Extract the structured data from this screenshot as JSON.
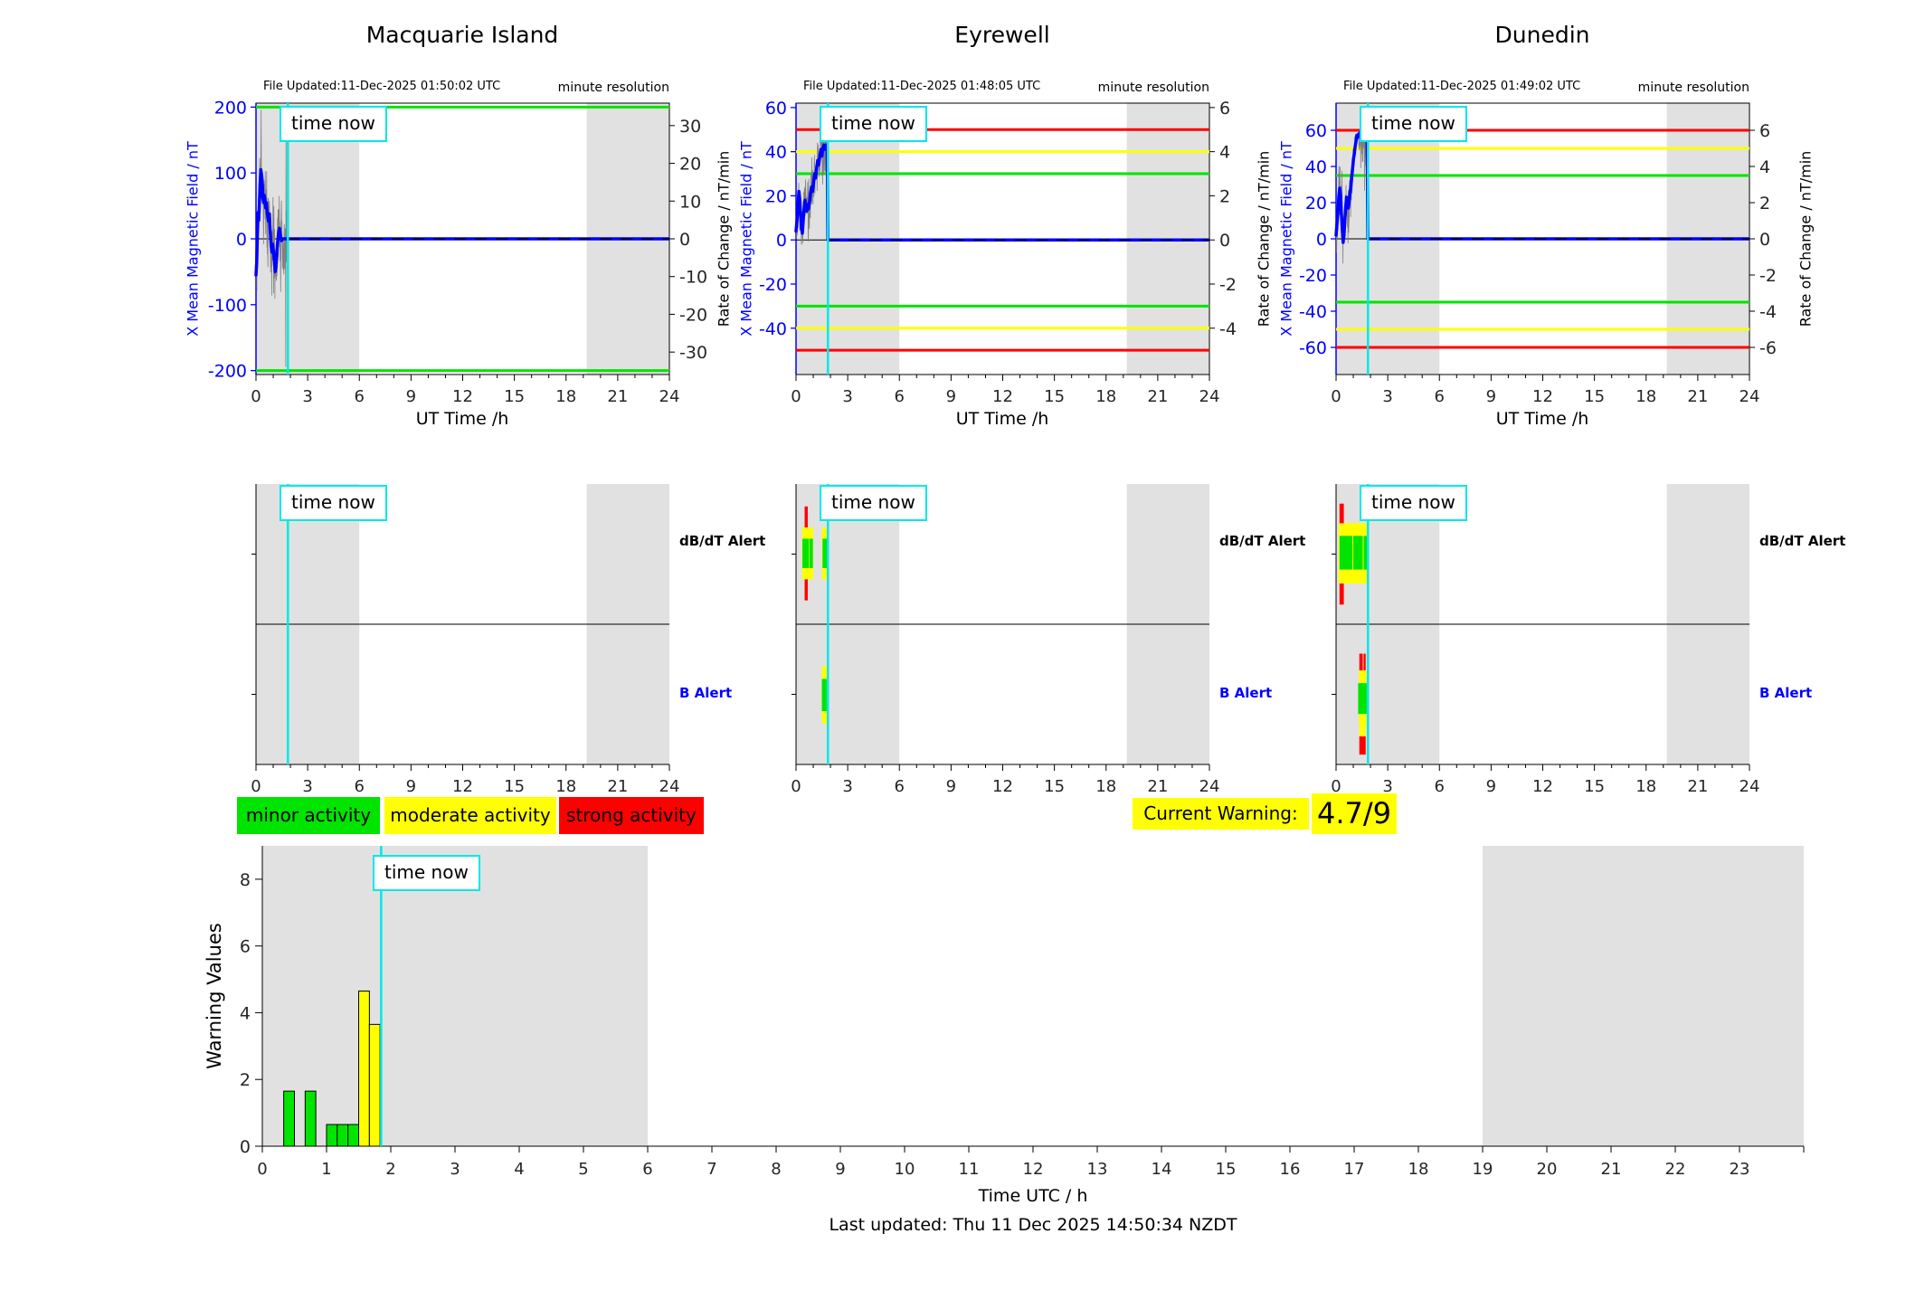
{
  "shared": {
    "time_now": "time now",
    "resolution": "minute resolution",
    "ut_xlabel": "UT Time /h",
    "ylabel_left": "X Mean Magnetic Field / nT",
    "ylabel_right": "Rate of Change / nT/min",
    "dbdt_label": "dB/dT Alert",
    "b_label": "B Alert"
  },
  "legend": {
    "minor": "minor activity",
    "moderate": "moderate activity",
    "strong": "strong activity"
  },
  "warning": {
    "label": "Current Warning:",
    "value": "4.7/9"
  },
  "footer": {
    "xlabel": "Time UTC / h",
    "last_updated": "Last updated: Thu 11 Dec 2025 14:50:34 NZDT",
    "ylabel": "Warning Values"
  },
  "colors": {
    "green": "#00e400",
    "yellow": "#ffff00",
    "red": "#ff0000",
    "blue": "#0000ff",
    "cyan": "#00e8e8",
    "night": "#e1e1e1",
    "noise": "#808080",
    "axis": "#262626",
    "black": "#000000"
  },
  "chart_data": [
    {
      "type": "line",
      "station": "Macquarie Island",
      "file_updated": "File Updated:11-Dec-2025 01:50:02 UTC",
      "xlabel": "UT Time /h",
      "xlim": [
        0,
        24
      ],
      "xticks": [
        0,
        3,
        6,
        9,
        12,
        15,
        18,
        21,
        24
      ],
      "ylim_left": [
        -206,
        206
      ],
      "yticks_left": [
        200,
        100,
        0,
        -100,
        -200
      ],
      "yticks_right": [
        30,
        20,
        10,
        0,
        -10,
        -20,
        -30
      ],
      "right_axis_scale": 5.73,
      "thresholds": [
        {
          "y": 200,
          "c": "green"
        },
        {
          "y": -200,
          "c": "green"
        }
      ],
      "night_shading": [
        [
          0,
          6
        ],
        [
          19.2,
          24
        ]
      ],
      "time_now_h": 1.85,
      "forecast_value": 0,
      "observed": [
        [
          0,
          -55
        ],
        [
          0.04,
          -35
        ],
        [
          0.08,
          5
        ],
        [
          0.12,
          40
        ],
        [
          0.16,
          28
        ],
        [
          0.2,
          55
        ],
        [
          0.24,
          85
        ],
        [
          0.28,
          105
        ],
        [
          0.32,
          98
        ],
        [
          0.36,
          88
        ],
        [
          0.4,
          62
        ],
        [
          0.44,
          55
        ],
        [
          0.48,
          66
        ],
        [
          0.52,
          60
        ],
        [
          0.56,
          47
        ],
        [
          0.6,
          55
        ],
        [
          0.64,
          42
        ],
        [
          0.68,
          34
        ],
        [
          0.72,
          27
        ],
        [
          0.76,
          38
        ],
        [
          0.8,
          24
        ],
        [
          0.84,
          5
        ],
        [
          0.88,
          -12
        ],
        [
          0.92,
          -20
        ],
        [
          0.96,
          -8
        ],
        [
          1.0,
          -16
        ],
        [
          1.04,
          -26
        ],
        [
          1.08,
          -40
        ],
        [
          1.12,
          -50
        ],
        [
          1.16,
          -42
        ],
        [
          1.2,
          -28
        ],
        [
          1.24,
          -10
        ],
        [
          1.28,
          2
        ],
        [
          1.32,
          12
        ],
        [
          1.36,
          16
        ],
        [
          1.4,
          8
        ],
        [
          1.44,
          2
        ],
        [
          1.48,
          -3
        ],
        [
          1.55,
          0
        ],
        [
          1.85,
          0
        ]
      ],
      "noise": {
        "amp": 90,
        "clip": [
          -196,
          196
        ],
        "seed": 11
      }
    },
    {
      "type": "line",
      "station": "Eyrewell",
      "file_updated": "File Updated:11-Dec-2025 01:48:05 UTC",
      "xlabel": "UT Time /h",
      "xlim": [
        0,
        24
      ],
      "xticks": [
        0,
        3,
        6,
        9,
        12,
        15,
        18,
        21,
        24
      ],
      "ylim_left": [
        -61,
        62
      ],
      "yticks_left": [
        60,
        40,
        20,
        0,
        -20,
        -40
      ],
      "yticks_right": [
        6,
        4,
        2,
        0,
        -2,
        -4
      ],
      "right_axis_scale": 10,
      "thresholds": [
        {
          "y": 50,
          "c": "red"
        },
        {
          "y": 40,
          "c": "yellow"
        },
        {
          "y": 30,
          "c": "green"
        },
        {
          "y": -30,
          "c": "green"
        },
        {
          "y": -40,
          "c": "yellow"
        },
        {
          "y": -50,
          "c": "red"
        }
      ],
      "night_shading": [
        [
          0,
          6
        ],
        [
          19.2,
          24
        ]
      ],
      "time_now_h": 1.85,
      "forecast_value": 0,
      "observed": [
        [
          0,
          4
        ],
        [
          0.07,
          10
        ],
        [
          0.12,
          17
        ],
        [
          0.17,
          22
        ],
        [
          0.22,
          18
        ],
        [
          0.27,
          11
        ],
        [
          0.32,
          5
        ],
        [
          0.37,
          3
        ],
        [
          0.42,
          9
        ],
        [
          0.47,
          14
        ],
        [
          0.52,
          18
        ],
        [
          0.57,
          16
        ],
        [
          0.62,
          13
        ],
        [
          0.67,
          16
        ],
        [
          0.72,
          14
        ],
        [
          0.78,
          17
        ],
        [
          0.84,
          21
        ],
        [
          0.9,
          24
        ],
        [
          0.96,
          22
        ],
        [
          1.02,
          26
        ],
        [
          1.08,
          30
        ],
        [
          1.14,
          28
        ],
        [
          1.2,
          33
        ],
        [
          1.26,
          36
        ],
        [
          1.32,
          34
        ],
        [
          1.38,
          38
        ],
        [
          1.44,
          41
        ],
        [
          1.5,
          38
        ],
        [
          1.56,
          42
        ],
        [
          1.62,
          43
        ],
        [
          1.68,
          41
        ],
        [
          1.74,
          43
        ],
        [
          1.8,
          42
        ],
        [
          1.83,
          30
        ],
        [
          1.85,
          0
        ]
      ],
      "noise": {
        "amp": 18,
        "clip": [
          -53,
          56
        ],
        "seed": 22
      }
    },
    {
      "type": "line",
      "station": "Dunedin",
      "file_updated": "File Updated:11-Dec-2025 01:49:02 UTC",
      "xlabel": "UT Time /h",
      "xlim": [
        0,
        24
      ],
      "xticks": [
        0,
        3,
        6,
        9,
        12,
        15,
        18,
        21,
        24
      ],
      "ylim_left": [
        -75,
        75
      ],
      "yticks_left": [
        60,
        40,
        20,
        0,
        -20,
        -40,
        -60
      ],
      "yticks_right": [
        6,
        4,
        2,
        0,
        -2,
        -4,
        -6
      ],
      "right_axis_scale": 10,
      "thresholds": [
        {
          "y": 60,
          "c": "red"
        },
        {
          "y": 50,
          "c": "yellow"
        },
        {
          "y": 35,
          "c": "green"
        },
        {
          "y": -35,
          "c": "green"
        },
        {
          "y": -50,
          "c": "yellow"
        },
        {
          "y": -60,
          "c": "red"
        }
      ],
      "night_shading": [
        [
          0,
          6
        ],
        [
          19.2,
          24
        ]
      ],
      "time_now_h": 1.85,
      "forecast_value": 0,
      "observed": [
        [
          0,
          2
        ],
        [
          0.06,
          9
        ],
        [
          0.11,
          15
        ],
        [
          0.16,
          23
        ],
        [
          0.21,
          28
        ],
        [
          0.26,
          24
        ],
        [
          0.31,
          14
        ],
        [
          0.36,
          5
        ],
        [
          0.41,
          -2
        ],
        [
          0.46,
          2
        ],
        [
          0.51,
          10
        ],
        [
          0.56,
          18
        ],
        [
          0.61,
          23
        ],
        [
          0.66,
          20
        ],
        [
          0.71,
          17
        ],
        [
          0.76,
          21
        ],
        [
          0.81,
          25
        ],
        [
          0.86,
          29
        ],
        [
          0.91,
          34
        ],
        [
          0.96,
          39
        ],
        [
          1.01,
          44
        ],
        [
          1.06,
          47
        ],
        [
          1.11,
          51
        ],
        [
          1.16,
          54
        ],
        [
          1.21,
          57
        ],
        [
          1.26,
          56
        ],
        [
          1.31,
          58
        ],
        [
          1.36,
          57
        ],
        [
          1.41,
          59
        ],
        [
          1.46,
          58
        ],
        [
          1.51,
          57
        ],
        [
          1.56,
          58
        ],
        [
          1.61,
          56
        ],
        [
          1.66,
          58
        ],
        [
          1.71,
          57
        ],
        [
          1.76,
          58
        ],
        [
          1.8,
          55
        ],
        [
          1.83,
          30
        ],
        [
          1.85,
          0
        ]
      ],
      "noise": {
        "amp": 22,
        "clip": [
          -72,
          58
        ],
        "seed": 33
      }
    },
    {
      "type": "alert-timeline",
      "rows": [
        "dB/dT Alert",
        "B Alert"
      ],
      "xlim": [
        0,
        24
      ],
      "xticks": [
        0,
        3,
        6,
        9,
        12,
        15,
        18,
        21,
        24
      ],
      "night_shading": [
        [
          0,
          6
        ],
        [
          19.2,
          24
        ]
      ],
      "time_now_h": 1.85,
      "stations": [
        {
          "station": "Macquarie Island",
          "dbdt": [],
          "b": []
        },
        {
          "station": "Eyrewell",
          "dbdt": [
            {
              "x0": 0.5,
              "x1": 0.68,
              "y0": 0.16,
              "y1": 0.31,
              "c": "red"
            },
            {
              "x0": 0.35,
              "x1": 1.0,
              "y0": 0.31,
              "y1": 0.68,
              "c": "yellow"
            },
            {
              "x0": 0.37,
              "x1": 0.75,
              "y0": 0.39,
              "y1": 0.6,
              "c": "green"
            },
            {
              "x0": 0.78,
              "x1": 0.98,
              "y0": 0.39,
              "y1": 0.6,
              "c": "green"
            },
            {
              "x0": 0.5,
              "x1": 0.68,
              "y0": 0.68,
              "y1": 0.83,
              "c": "red"
            },
            {
              "x0": 1.5,
              "x1": 1.82,
              "y0": 0.31,
              "y1": 0.68,
              "c": "yellow"
            },
            {
              "x0": 1.54,
              "x1": 1.8,
              "y0": 0.39,
              "y1": 0.6,
              "c": "green"
            }
          ],
          "b": [
            {
              "x0": 1.5,
              "x1": 1.82,
              "y0": 0.3,
              "y1": 0.71,
              "c": "yellow"
            },
            {
              "x0": 1.5,
              "x1": 1.78,
              "y0": 0.39,
              "y1": 0.62,
              "c": "green"
            }
          ]
        },
        {
          "station": "Dunedin",
          "dbdt": [
            {
              "x0": 0.15,
              "x1": 1.9,
              "y0": 0.28,
              "y1": 0.71,
              "c": "yellow"
            },
            {
              "x0": 0.2,
              "x1": 0.95,
              "y0": 0.37,
              "y1": 0.61,
              "c": "green"
            },
            {
              "x0": 1.0,
              "x1": 1.55,
              "y0": 0.37,
              "y1": 0.61,
              "c": "green"
            },
            {
              "x0": 1.6,
              "x1": 1.87,
              "y0": 0.37,
              "y1": 0.61,
              "c": "green"
            },
            {
              "x0": 0.2,
              "x1": 0.45,
              "y0": 0.14,
              "y1": 0.28,
              "c": "red"
            },
            {
              "x0": 0.2,
              "x1": 0.45,
              "y0": 0.71,
              "y1": 0.86,
              "c": "red"
            }
          ],
          "b": [
            {
              "x0": 1.35,
              "x1": 1.55,
              "y0": 0.21,
              "y1": 0.33,
              "c": "red"
            },
            {
              "x0": 1.6,
              "x1": 1.72,
              "y0": 0.21,
              "y1": 0.33,
              "c": "red"
            },
            {
              "x0": 1.33,
              "x1": 1.76,
              "y0": 0.33,
              "y1": 0.72,
              "c": "yellow"
            },
            {
              "x0": 1.28,
              "x1": 1.78,
              "y0": 0.42,
              "y1": 0.64,
              "c": "green"
            },
            {
              "x0": 1.35,
              "x1": 1.72,
              "y0": 0.72,
              "y1": 0.8,
              "c": "yellow"
            },
            {
              "x0": 1.35,
              "x1": 1.72,
              "y0": 0.8,
              "y1": 0.93,
              "c": "red"
            }
          ]
        }
      ]
    },
    {
      "type": "bar",
      "ylabel": "Warning Values",
      "xlabel": "Time UTC / h",
      "xlim": [
        0,
        24
      ],
      "ylim": [
        0,
        9
      ],
      "yticks": [
        0,
        2,
        4,
        6,
        8
      ],
      "xticks": [
        0,
        1,
        2,
        3,
        4,
        5,
        6,
        7,
        8,
        9,
        10,
        11,
        12,
        13,
        14,
        15,
        16,
        17,
        18,
        19,
        20,
        21,
        22,
        23
      ],
      "night_shading": [
        [
          0,
          6
        ],
        [
          19,
          24
        ]
      ],
      "time_now_h": 1.85,
      "current_warning": 4.7,
      "warning_max": 9,
      "bars": [
        {
          "x0": 0.333,
          "x1": 0.5,
          "v": 1.65,
          "c": "green"
        },
        {
          "x0": 0.667,
          "x1": 0.833,
          "v": 1.65,
          "c": "green"
        },
        {
          "x0": 1.0,
          "x1": 1.167,
          "v": 0.65,
          "c": "green"
        },
        {
          "x0": 1.167,
          "x1": 1.333,
          "v": 0.65,
          "c": "green"
        },
        {
          "x0": 1.333,
          "x1": 1.5,
          "v": 0.65,
          "c": "green"
        },
        {
          "x0": 1.5,
          "x1": 1.667,
          "v": 4.65,
          "c": "yellow"
        },
        {
          "x0": 1.667,
          "x1": 1.833,
          "v": 3.65,
          "c": "yellow"
        }
      ]
    }
  ]
}
